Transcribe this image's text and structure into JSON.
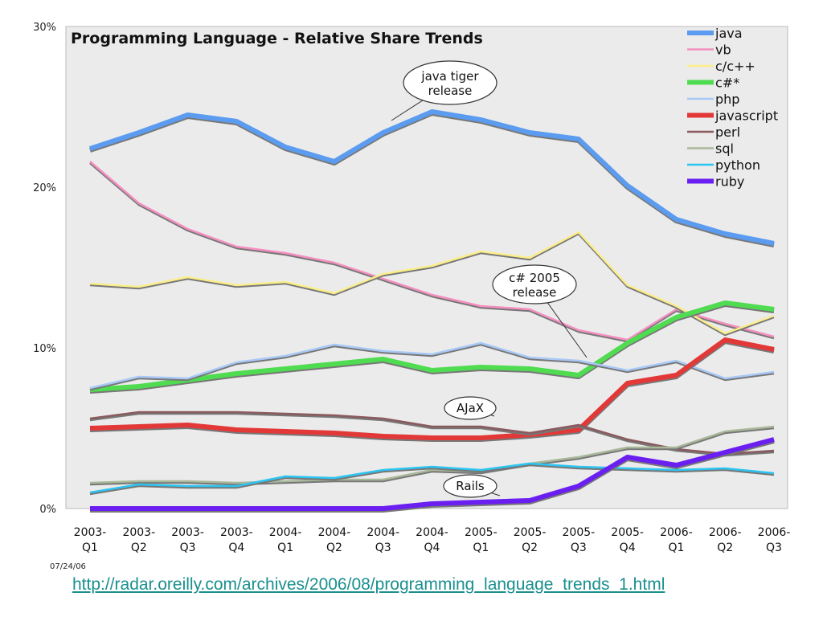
{
  "chart_data": {
    "type": "line",
    "title": "Programming Language - Relative Share Trends",
    "categories": [
      "2003-Q1",
      "2003-Q2",
      "2003-Q3",
      "2003-Q4",
      "2004-Q1",
      "2004-Q2",
      "2004-Q3",
      "2004-Q4",
      "2005-Q1",
      "2005-Q2",
      "2005-Q3",
      "2005-Q4",
      "2006-Q1",
      "2006-Q2",
      "2006-Q3"
    ],
    "category_labels": [
      [
        "2003-",
        "Q1"
      ],
      [
        "2003-",
        "Q2"
      ],
      [
        "2003-",
        "Q3"
      ],
      [
        "2003-",
        "Q4"
      ],
      [
        "2004-",
        "Q1"
      ],
      [
        "2004-",
        "Q2"
      ],
      [
        "2004-",
        "Q3"
      ],
      [
        "2004-",
        "Q4"
      ],
      [
        "2005-",
        "Q1"
      ],
      [
        "2005-",
        "Q2"
      ],
      [
        "2005-",
        "Q3"
      ],
      [
        "2005-",
        "Q4"
      ],
      [
        "2006-",
        "Q1"
      ],
      [
        "2006-",
        "Q2"
      ],
      [
        "2006-",
        "Q3"
      ]
    ],
    "ylim": [
      0,
      30
    ],
    "yticks": [
      {
        "v": 0,
        "label": "0%"
      },
      {
        "v": 10,
        "label": "10%"
      },
      {
        "v": 20,
        "label": "20%"
      },
      {
        "v": 30,
        "label": "30%"
      }
    ],
    "grid": false,
    "legend_position": "top-right",
    "series": [
      {
        "name": "java",
        "color": "#5b9cf0",
        "width": "thick",
        "values": [
          22.4,
          23.4,
          24.5,
          24.1,
          22.5,
          21.6,
          23.4,
          24.7,
          24.2,
          23.4,
          23.0,
          20.1,
          18.0,
          17.1,
          16.5
        ]
      },
      {
        "name": "vb",
        "color": "#f48fc0",
        "width": "thin",
        "values": [
          21.6,
          19.0,
          17.4,
          16.3,
          15.9,
          15.3,
          14.3,
          13.3,
          12.6,
          12.4,
          11.1,
          10.5,
          12.4,
          11.5,
          10.7
        ]
      },
      {
        "name": "c/c++",
        "color": "#fbee8a",
        "width": "thin",
        "values": [
          14.0,
          13.8,
          14.4,
          13.9,
          14.1,
          13.4,
          14.6,
          15.1,
          16.0,
          15.6,
          17.2,
          13.9,
          12.6,
          10.9,
          12.0
        ]
      },
      {
        "name": "c#*",
        "color": "#4fdc50",
        "width": "thick",
        "values": [
          7.4,
          7.6,
          8.0,
          8.4,
          8.7,
          9.0,
          9.3,
          8.6,
          8.8,
          8.7,
          8.3,
          10.3,
          11.9,
          12.8,
          12.4
        ]
      },
      {
        "name": "php",
        "color": "#a8c8f6",
        "width": "thin",
        "values": [
          7.5,
          8.2,
          8.1,
          9.1,
          9.5,
          10.2,
          9.8,
          9.6,
          10.3,
          9.4,
          9.2,
          8.6,
          9.2,
          8.1,
          8.5
        ]
      },
      {
        "name": "javascript",
        "color": "#e33838",
        "width": "thick",
        "values": [
          5.0,
          5.1,
          5.2,
          4.9,
          4.8,
          4.7,
          4.5,
          4.4,
          4.4,
          4.6,
          4.9,
          7.8,
          8.3,
          10.5,
          9.9
        ]
      },
      {
        "name": "perl",
        "color": "#8a5a5e",
        "width": "thin",
        "values": [
          5.6,
          6.0,
          6.0,
          6.0,
          5.9,
          5.8,
          5.6,
          5.1,
          5.1,
          4.7,
          5.2,
          4.3,
          3.7,
          3.4,
          3.6
        ]
      },
      {
        "name": "sql",
        "color": "#a9b89a",
        "width": "thin",
        "values": [
          1.6,
          1.7,
          1.7,
          1.6,
          1.7,
          1.8,
          1.8,
          2.4,
          2.3,
          2.8,
          3.2,
          3.8,
          3.8,
          4.8,
          5.1
        ]
      },
      {
        "name": "python",
        "color": "#2cc4f0",
        "width": "thin",
        "values": [
          1.0,
          1.5,
          1.4,
          1.4,
          2.0,
          1.9,
          2.4,
          2.6,
          2.4,
          2.8,
          2.6,
          2.5,
          2.4,
          2.5,
          2.2
        ]
      },
      {
        "name": "ruby",
        "color": "#6a1ff0",
        "width": "thick",
        "values": [
          0,
          0,
          0,
          0,
          0,
          0,
          0,
          0.3,
          0.4,
          0.5,
          1.4,
          3.2,
          2.7,
          3.5,
          4.3
        ]
      }
    ],
    "annotations": [
      {
        "lines": [
          "java tiger",
          "release"
        ],
        "category": "2004-Q3",
        "value": 24.3
      },
      {
        "lines": [
          "c# 2005",
          "release"
        ],
        "category": "2005-Q3",
        "value": 9.4
      },
      {
        "lines": [
          "AJaX"
        ],
        "category": "2005-Q1",
        "value": 5.3
      },
      {
        "lines": [
          "Rails"
        ],
        "category": "2005-Q2",
        "value": 0.7
      }
    ]
  },
  "footer": {
    "date": "07/24/06",
    "source_link": "http://radar.oreilly.com/archives/2006/08/programming_language_trends_1.html"
  }
}
